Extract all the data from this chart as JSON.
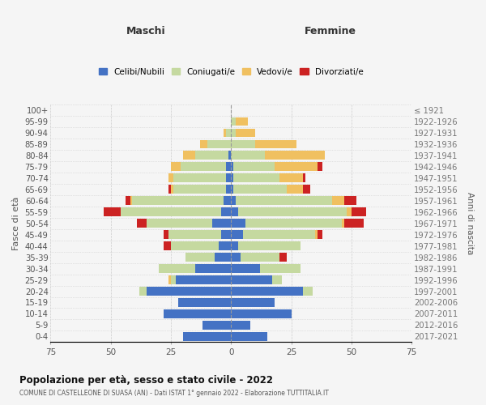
{
  "age_groups": [
    "0-4",
    "5-9",
    "10-14",
    "15-19",
    "20-24",
    "25-29",
    "30-34",
    "35-39",
    "40-44",
    "45-49",
    "50-54",
    "55-59",
    "60-64",
    "65-69",
    "70-74",
    "75-79",
    "80-84",
    "85-89",
    "90-94",
    "95-99",
    "100+"
  ],
  "birth_years": [
    "2017-2021",
    "2012-2016",
    "2007-2011",
    "2002-2006",
    "1997-2001",
    "1992-1996",
    "1987-1991",
    "1982-1986",
    "1977-1981",
    "1972-1976",
    "1967-1971",
    "1962-1966",
    "1957-1961",
    "1952-1956",
    "1947-1951",
    "1942-1946",
    "1937-1941",
    "1932-1936",
    "1927-1931",
    "1922-1926",
    "≤ 1921"
  ],
  "colors": {
    "celibe": "#4472c4",
    "coniugato": "#c5d9a0",
    "vedovo": "#f0c060",
    "divorziato": "#cc2222"
  },
  "maschi": {
    "celibe": [
      20,
      12,
      28,
      22,
      35,
      23,
      15,
      7,
      5,
      4,
      8,
      4,
      3,
      2,
      2,
      2,
      1,
      0,
      0,
      0,
      0
    ],
    "coniugato": [
      0,
      0,
      0,
      0,
      3,
      2,
      15,
      12,
      20,
      22,
      27,
      42,
      38,
      22,
      22,
      19,
      14,
      10,
      2,
      0,
      0
    ],
    "vedovo": [
      0,
      0,
      0,
      0,
      0,
      1,
      0,
      0,
      0,
      0,
      0,
      0,
      1,
      1,
      2,
      4,
      5,
      3,
      1,
      0,
      0
    ],
    "divorziato": [
      0,
      0,
      0,
      0,
      0,
      0,
      0,
      0,
      3,
      2,
      4,
      7,
      2,
      1,
      0,
      0,
      0,
      0,
      0,
      0,
      0
    ]
  },
  "femmine": {
    "nubile": [
      15,
      8,
      25,
      18,
      30,
      17,
      12,
      4,
      3,
      5,
      6,
      3,
      2,
      1,
      1,
      1,
      0,
      0,
      0,
      0,
      0
    ],
    "coniugata": [
      0,
      0,
      0,
      0,
      4,
      4,
      17,
      16,
      26,
      30,
      40,
      45,
      40,
      22,
      19,
      17,
      14,
      10,
      2,
      2,
      0
    ],
    "vedova": [
      0,
      0,
      0,
      0,
      0,
      0,
      0,
      0,
      0,
      1,
      1,
      2,
      5,
      7,
      10,
      18,
      25,
      17,
      8,
      5,
      0
    ],
    "divorziata": [
      0,
      0,
      0,
      0,
      0,
      0,
      0,
      3,
      0,
      2,
      8,
      6,
      5,
      3,
      1,
      2,
      0,
      0,
      0,
      0,
      0
    ]
  },
  "xlim": 75,
  "title": "Popolazione per età, sesso e stato civile - 2022",
  "subtitle": "COMUNE DI CASTELLEONE DI SUASA (AN) - Dati ISTAT 1° gennaio 2022 - Elaborazione TUTTITALIA.IT",
  "xlabel_left": "Maschi",
  "xlabel_right": "Femmine",
  "ylabel": "Fasce di età",
  "ylabel_right": "Anni di nascita",
  "legend_labels": [
    "Celibi/Nubili",
    "Coniugati/e",
    "Vedovi/e",
    "Divorziati/e"
  ],
  "bg_color": "#f5f5f5",
  "grid_color": "#cccccc"
}
